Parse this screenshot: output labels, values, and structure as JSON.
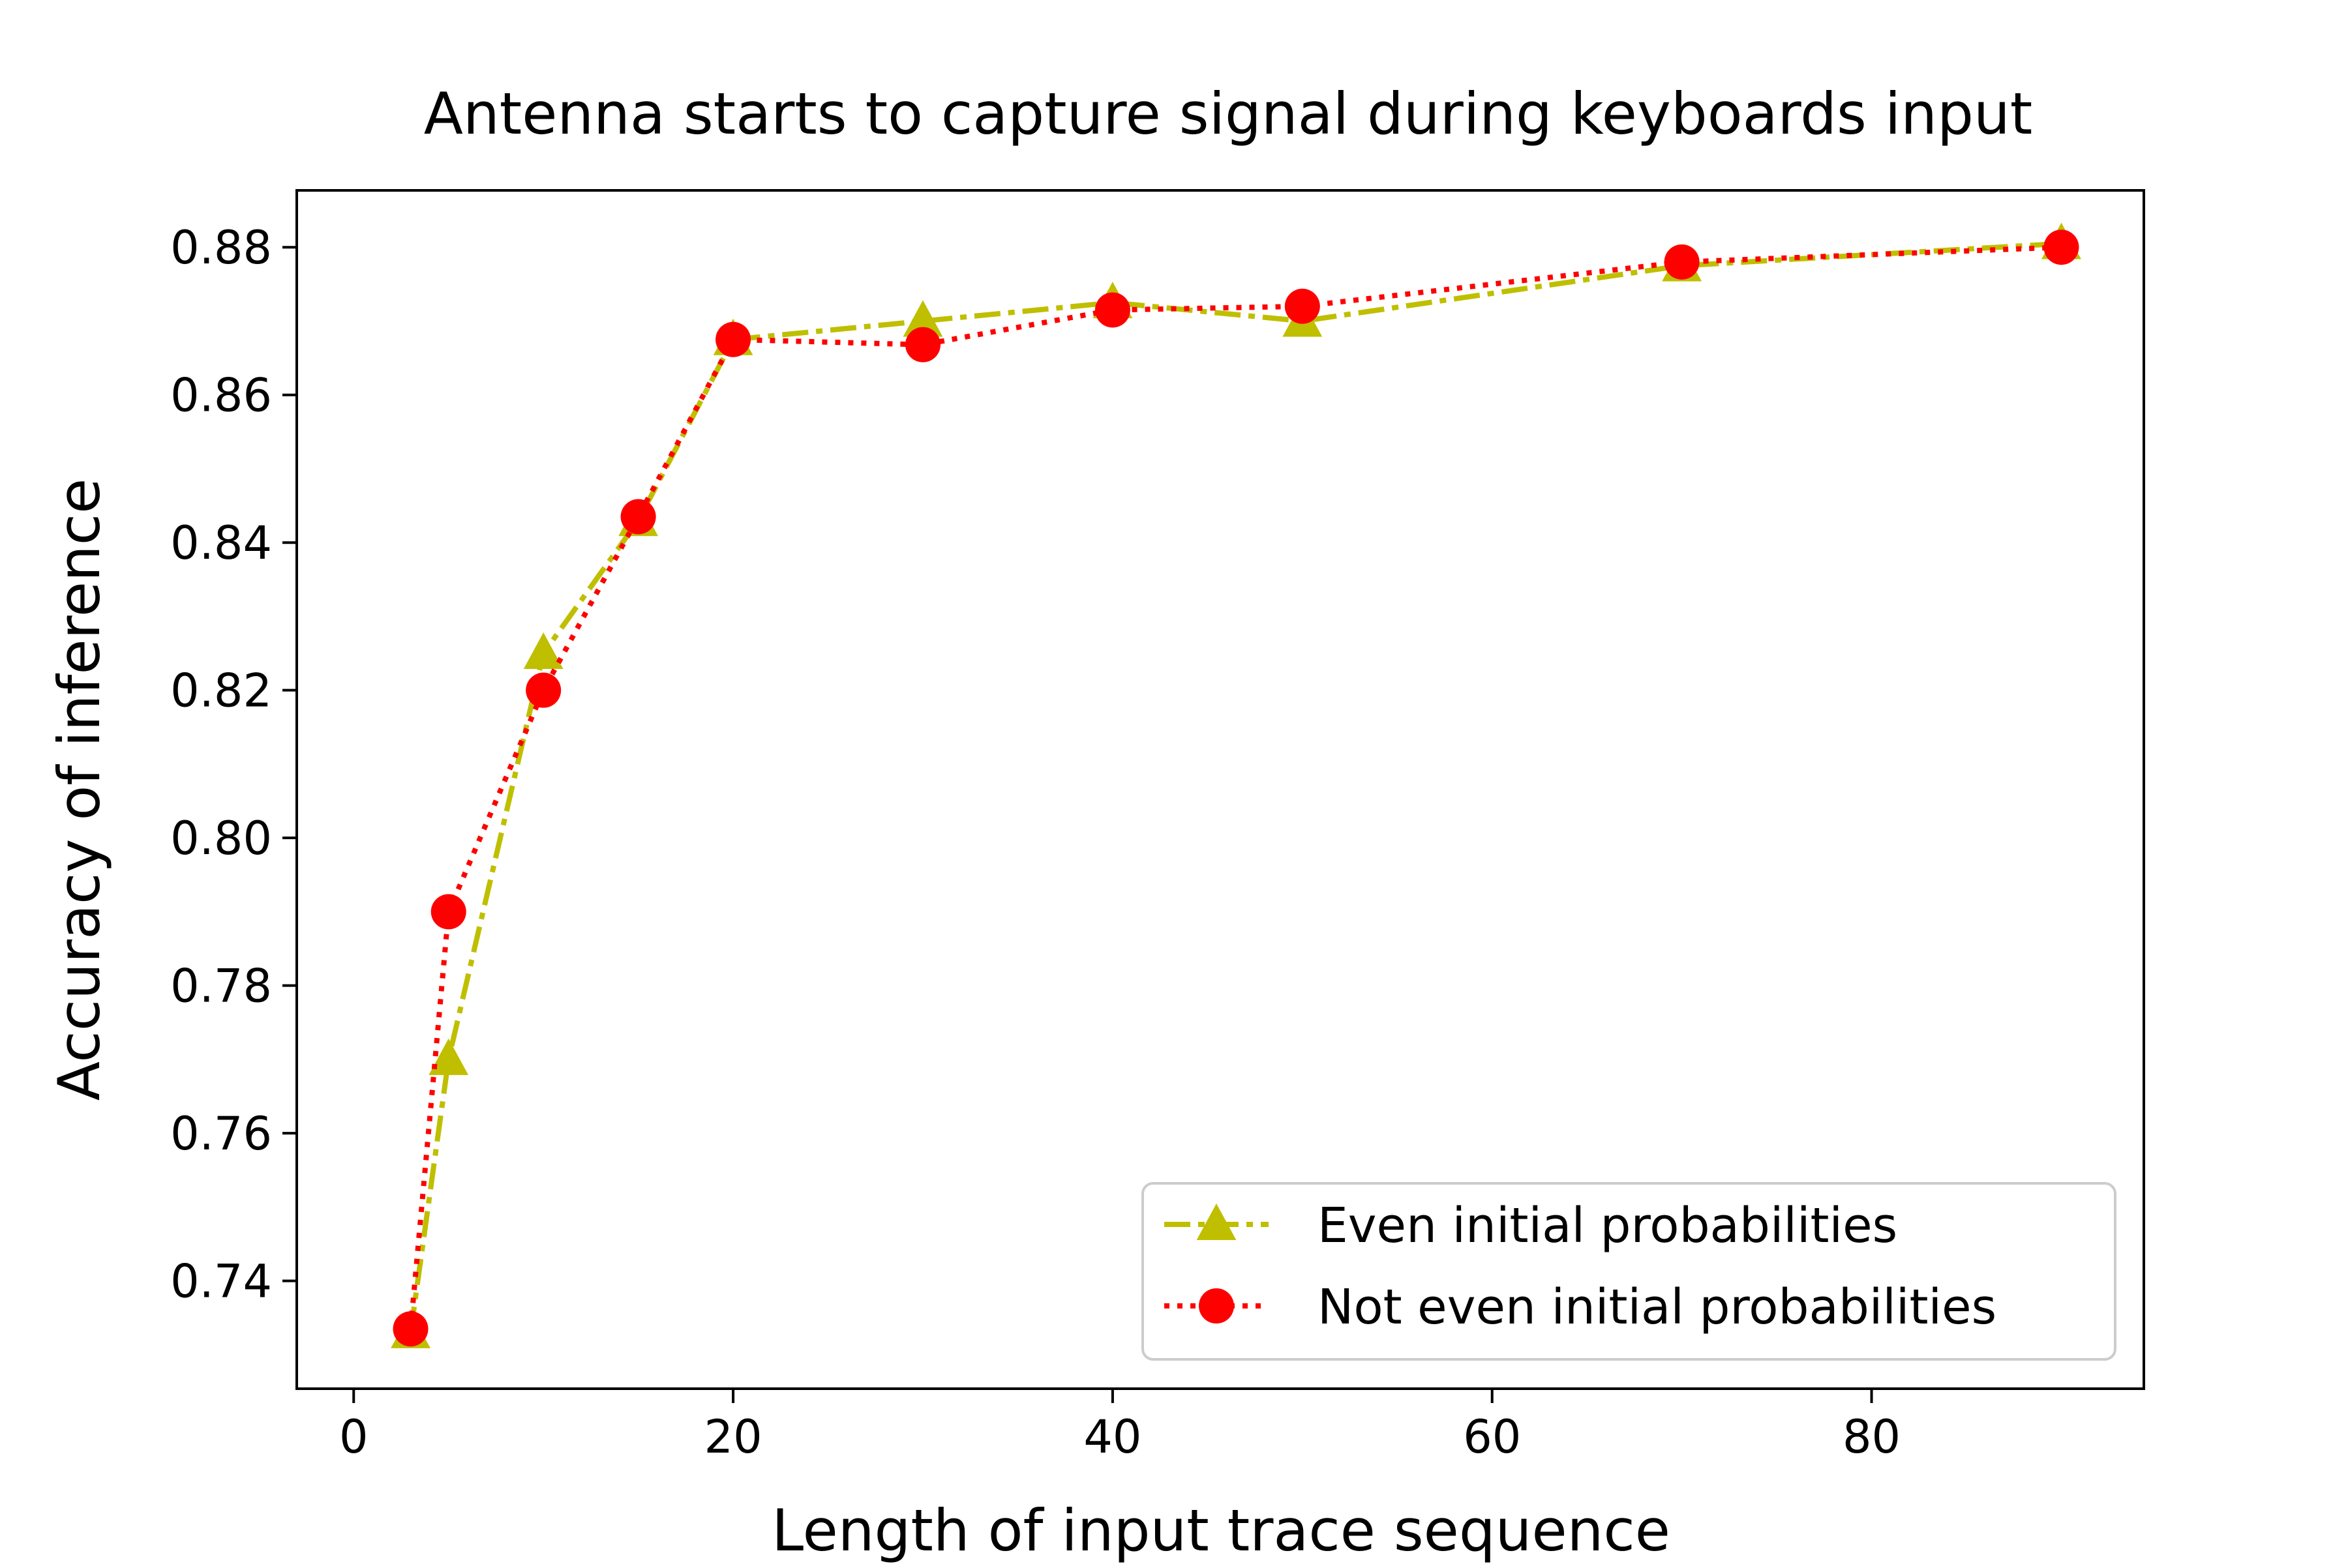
{
  "chart_data": {
    "type": "line",
    "title": "Antenna starts to capture signal during keyboards input",
    "xlabel": "Length of input trace sequence",
    "ylabel": "Accuracy of inference",
    "xlim": [
      -3,
      94.35
    ],
    "ylim": [
      0.7254,
      0.8877
    ],
    "x_ticks": [
      0,
      20,
      40,
      60,
      80
    ],
    "x_tick_labels": [
      "0",
      "20",
      "40",
      "60",
      "80"
    ],
    "y_ticks": [
      0.74,
      0.76,
      0.78,
      0.8,
      0.82,
      0.84,
      0.86,
      0.88
    ],
    "y_tick_labels": [
      "0.74",
      "0.76",
      "0.78",
      "0.80",
      "0.82",
      "0.84",
      "0.86",
      "0.88"
    ],
    "grid": false,
    "legend_position": "lower-right",
    "x": [
      3,
      5,
      10,
      15,
      20,
      30,
      40,
      50,
      70,
      90
    ],
    "series": [
      {
        "name": "Even initial probabilities",
        "values": [
          0.733,
          0.77,
          0.825,
          0.843,
          0.8675,
          0.87,
          0.8725,
          0.87,
          0.8775,
          0.8805
        ],
        "color": "#bfbf00",
        "marker": "triangle",
        "line_style": "dashdot"
      },
      {
        "name": "Not even initial probabilities",
        "values": [
          0.7335,
          0.79,
          0.82,
          0.8435,
          0.8675,
          0.8668,
          0.8715,
          0.872,
          0.878,
          0.88
        ],
        "color": "#ff0000",
        "marker": "circle",
        "line_style": "dotted"
      }
    ]
  }
}
